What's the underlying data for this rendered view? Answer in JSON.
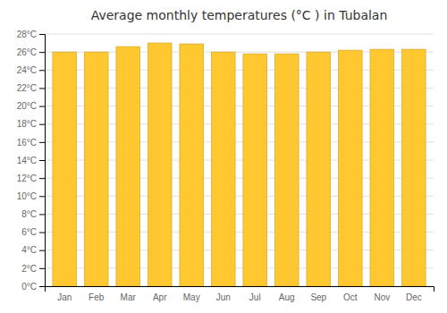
{
  "chart_data": {
    "type": "bar",
    "title": "Average monthly temperatures (°C ) in Tubalan",
    "categories": [
      "Jan",
      "Feb",
      "Mar",
      "Apr",
      "May",
      "Jun",
      "Jul",
      "Aug",
      "Sep",
      "Oct",
      "Nov",
      "Dec"
    ],
    "values": [
      26.0,
      26.0,
      26.6,
      27.0,
      26.9,
      26.0,
      25.8,
      25.8,
      26.0,
      26.2,
      26.3,
      26.3
    ],
    "color": "#FFC830",
    "ylim": [
      0,
      28
    ],
    "yticks": [
      {
        "value": 0,
        "label": "0°C"
      },
      {
        "value": 2,
        "label": "2°C"
      },
      {
        "value": 4,
        "label": "4°C"
      },
      {
        "value": 6,
        "label": "6°C"
      },
      {
        "value": 8,
        "label": "8°C"
      },
      {
        "value": 10,
        "label": "10°C"
      },
      {
        "value": 12,
        "label": "12°C"
      },
      {
        "value": 14,
        "label": "14°C"
      },
      {
        "value": 16,
        "label": "16°C"
      },
      {
        "value": 18,
        "label": "18°C"
      },
      {
        "value": 20,
        "label": "20°C"
      },
      {
        "value": 22,
        "label": "22°C"
      },
      {
        "value": 24,
        "label": "24°C"
      },
      {
        "value": 26,
        "label": "26°C"
      },
      {
        "value": 28,
        "label": "28°C"
      }
    ],
    "grid": true
  }
}
